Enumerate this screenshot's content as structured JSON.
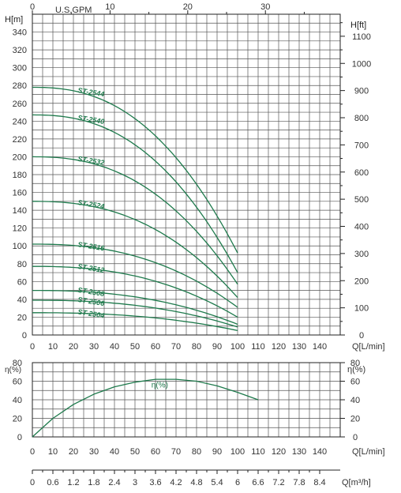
{
  "chart_data": [
    {
      "type": "line",
      "title": "",
      "xlabel": "Q[L/min]",
      "ylabel": "H[m]",
      "ylabel_right": "H[ft]",
      "xlabel_top": "U.S.GPM",
      "xlim": [
        0,
        150
      ],
      "ylim": [
        0,
        360
      ],
      "x_ticks": [
        0,
        10,
        20,
        30,
        40,
        50,
        60,
        70,
        80,
        90,
        100,
        110,
        120,
        130,
        140
      ],
      "y_ticks": [
        0,
        20,
        40,
        60,
        80,
        100,
        120,
        140,
        160,
        180,
        200,
        220,
        240,
        260,
        280,
        300,
        320,
        340
      ],
      "ft_ticks": [
        0,
        100,
        200,
        300,
        400,
        500,
        600,
        700,
        800,
        900,
        1000,
        1100
      ],
      "gpm_ticks": [
        0,
        10,
        20,
        30
      ],
      "grid": true,
      "series": [
        {
          "name": "ST-2544",
          "shutoff": 278,
          "end": 92
        },
        {
          "name": "ST-2540",
          "shutoff": 247,
          "end": 70
        },
        {
          "name": "ST-2532",
          "shutoff": 200,
          "end": 57
        },
        {
          "name": "ST-2524",
          "shutoff": 150,
          "end": 42
        },
        {
          "name": "ST-2516",
          "shutoff": 102,
          "end": 31
        },
        {
          "name": "ST-2512",
          "shutoff": 77,
          "end": 20
        },
        {
          "name": "ST-2508",
          "shutoff": 50,
          "end": 12
        },
        {
          "name": "ST-2506",
          "shutoff": 39,
          "end": 9
        },
        {
          "name": "ST-2504",
          "shutoff": 25,
          "end": 5
        }
      ]
    },
    {
      "type": "line",
      "xlabel": "Q[L/min]",
      "ylabel": "η(%)",
      "ylabel_right": "η(%)",
      "xlim": [
        0,
        150
      ],
      "ylim": [
        0,
        80
      ],
      "x_ticks": [
        0,
        10,
        20,
        30,
        40,
        50,
        60,
        70,
        80,
        90,
        100,
        110,
        120,
        130,
        140
      ],
      "y_ticks": [
        0,
        20,
        40,
        60,
        80
      ],
      "grid": true,
      "series": [
        {
          "name": "η(%)",
          "x": [
            0,
            10,
            20,
            30,
            40,
            50,
            60,
            70,
            80,
            90,
            100,
            110
          ],
          "y": [
            0,
            20,
            35,
            46,
            54,
            59,
            62,
            62,
            60,
            55,
            48,
            40
          ]
        }
      ]
    }
  ],
  "flow_m3h": {
    "label": "Q[m³/h]",
    "ticks": [
      "0",
      "0.6",
      "1.2",
      "1.8",
      "2.4",
      "3",
      "3.6",
      "4.2",
      "4.8",
      "5.4",
      "6",
      "6.6",
      "7.2",
      "7.8",
      "8.4"
    ]
  }
}
